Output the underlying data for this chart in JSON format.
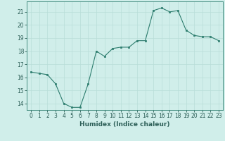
{
  "x": [
    0,
    1,
    2,
    3,
    4,
    5,
    6,
    7,
    8,
    9,
    10,
    11,
    12,
    13,
    14,
    15,
    16,
    17,
    18,
    19,
    20,
    21,
    22,
    23
  ],
  "y": [
    16.4,
    16.3,
    16.2,
    15.5,
    14.0,
    13.7,
    13.7,
    15.5,
    18.0,
    17.6,
    18.2,
    18.3,
    18.3,
    18.8,
    18.8,
    21.1,
    21.3,
    21.0,
    21.1,
    19.6,
    19.2,
    19.1,
    19.1,
    18.8
  ],
  "xlabel": "Humidex (Indice chaleur)",
  "ylim": [
    13.5,
    21.8
  ],
  "xlim": [
    -0.5,
    23.5
  ],
  "yticks": [
    14,
    15,
    16,
    17,
    18,
    19,
    20,
    21
  ],
  "xticks": [
    0,
    1,
    2,
    3,
    4,
    5,
    6,
    7,
    8,
    9,
    10,
    11,
    12,
    13,
    14,
    15,
    16,
    17,
    18,
    19,
    20,
    21,
    22,
    23
  ],
  "line_color": "#2d7d6e",
  "marker_color": "#2d7d6e",
  "bg_color": "#d0eeea",
  "grid_color": "#b8ddd8",
  "axis_color": "#2d7d6e",
  "tick_color": "#2d5f58",
  "label_color": "#2d5f58",
  "font_size": 5.5,
  "xlabel_font_size": 6.5
}
